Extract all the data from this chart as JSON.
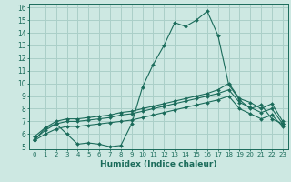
{
  "xlabel": "Humidex (Indice chaleur)",
  "bg_color": "#cde8e2",
  "grid_color": "#aacfc8",
  "line_color": "#1a6b5a",
  "xlim": [
    -0.5,
    23.5
  ],
  "ylim": [
    4.8,
    16.3
  ],
  "xticks": [
    0,
    1,
    2,
    3,
    4,
    5,
    6,
    7,
    8,
    9,
    10,
    11,
    12,
    13,
    14,
    15,
    16,
    17,
    18,
    19,
    20,
    21,
    22,
    23
  ],
  "yticks": [
    5,
    6,
    7,
    8,
    9,
    10,
    11,
    12,
    13,
    14,
    15,
    16
  ],
  "series": {
    "main": {
      "x": [
        0,
        1,
        2,
        3,
        4,
        5,
        6,
        7,
        8,
        9,
        10,
        11,
        12,
        13,
        14,
        15,
        16,
        17,
        18,
        19,
        20,
        21,
        22,
        23
      ],
      "y": [
        5.5,
        6.5,
        6.8,
        6.0,
        5.2,
        5.3,
        5.2,
        5.0,
        5.1,
        6.8,
        9.7,
        11.5,
        13.0,
        14.8,
        14.5,
        15.0,
        15.7,
        13.8,
        9.9,
        8.7,
        8.0,
        8.3,
        7.2,
        6.8
      ]
    },
    "band_upper": {
      "x": [
        0,
        1,
        2,
        3,
        4,
        5,
        6,
        7,
        8,
        9,
        10,
        11,
        12,
        13,
        14,
        15,
        16,
        17,
        18,
        19,
        20,
        21,
        22,
        23
      ],
      "y": [
        5.8,
        6.5,
        7.0,
        7.2,
        7.2,
        7.3,
        7.4,
        7.5,
        7.7,
        7.8,
        8.0,
        8.2,
        8.4,
        8.6,
        8.8,
        9.0,
        9.2,
        9.5,
        10.0,
        8.8,
        8.5,
        8.0,
        8.4,
        7.0
      ]
    },
    "band_mid": {
      "x": [
        0,
        1,
        2,
        3,
        4,
        5,
        6,
        7,
        8,
        9,
        10,
        11,
        12,
        13,
        14,
        15,
        16,
        17,
        18,
        19,
        20,
        21,
        22,
        23
      ],
      "y": [
        5.6,
        6.3,
        6.8,
        7.0,
        7.0,
        7.1,
        7.2,
        7.3,
        7.5,
        7.6,
        7.8,
        8.0,
        8.2,
        8.4,
        8.6,
        8.8,
        9.0,
        9.2,
        9.5,
        8.5,
        8.1,
        7.7,
        8.0,
        6.8
      ]
    },
    "band_lower": {
      "x": [
        0,
        1,
        2,
        3,
        4,
        5,
        6,
        7,
        8,
        9,
        10,
        11,
        12,
        13,
        14,
        15,
        16,
        17,
        18,
        19,
        20,
        21,
        22,
        23
      ],
      "y": [
        5.5,
        6.0,
        6.4,
        6.6,
        6.6,
        6.7,
        6.8,
        6.9,
        7.0,
        7.1,
        7.3,
        7.5,
        7.7,
        7.9,
        8.1,
        8.3,
        8.5,
        8.7,
        9.0,
        8.0,
        7.6,
        7.2,
        7.5,
        6.6
      ]
    }
  }
}
